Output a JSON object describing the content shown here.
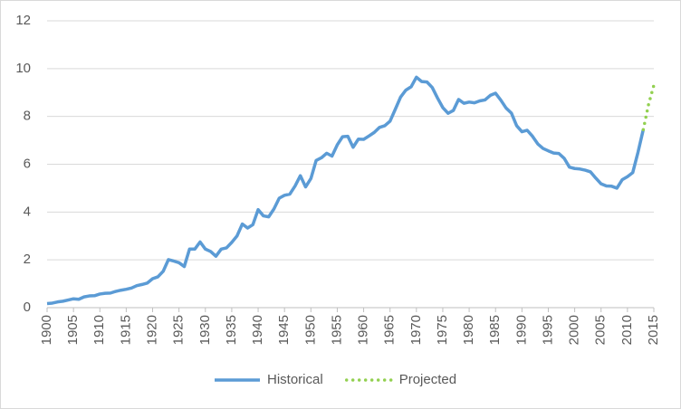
{
  "chart_data": {
    "type": "line",
    "xlim": [
      1900,
      2015
    ],
    "xticks": [
      1900,
      1905,
      1910,
      1915,
      1920,
      1925,
      1930,
      1935,
      1940,
      1945,
      1950,
      1955,
      1960,
      1965,
      1970,
      1975,
      1980,
      1985,
      1990,
      1995,
      2000,
      2005,
      2010,
      2015
    ],
    "ylim": [
      0,
      12
    ],
    "yticks": [
      0,
      2,
      4,
      6,
      8,
      10,
      12
    ],
    "grid": true,
    "legend": "bottom",
    "series": [
      {
        "name": "Historical",
        "color": "#5b9bd5",
        "style": "solid",
        "x": [
          1900,
          1901,
          1902,
          1903,
          1904,
          1905,
          1906,
          1907,
          1908,
          1909,
          1910,
          1911,
          1912,
          1913,
          1914,
          1915,
          1916,
          1917,
          1918,
          1919,
          1920,
          1921,
          1922,
          1923,
          1924,
          1925,
          1926,
          1927,
          1928,
          1929,
          1930,
          1931,
          1932,
          1933,
          1934,
          1935,
          1936,
          1937,
          1938,
          1939,
          1940,
          1941,
          1942,
          1943,
          1944,
          1945,
          1946,
          1947,
          1948,
          1949,
          1950,
          1951,
          1952,
          1953,
          1954,
          1955,
          1956,
          1957,
          1958,
          1959,
          1960,
          1961,
          1962,
          1963,
          1964,
          1965,
          1966,
          1967,
          1968,
          1969,
          1970,
          1971,
          1972,
          1973,
          1974,
          1975,
          1976,
          1977,
          1978,
          1979,
          1980,
          1981,
          1982,
          1983,
          1984,
          1985,
          1986,
          1987,
          1988,
          1989,
          1990,
          1991,
          1992,
          1993,
          1994,
          1995,
          1996,
          1997,
          1998,
          1999,
          2000,
          2001,
          2002,
          2003,
          2004,
          2005,
          2006,
          2007,
          2008,
          2009,
          2010,
          2011,
          2012,
          2013
        ],
        "values": [
          0.17,
          0.19,
          0.24,
          0.27,
          0.32,
          0.37,
          0.35,
          0.45,
          0.49,
          0.5,
          0.57,
          0.6,
          0.61,
          0.68,
          0.73,
          0.77,
          0.82,
          0.92,
          0.97,
          1.03,
          1.21,
          1.29,
          1.52,
          2.01,
          1.95,
          1.88,
          1.72,
          2.45,
          2.45,
          2.75,
          2.45,
          2.35,
          2.15,
          2.45,
          2.5,
          2.73,
          3.0,
          3.5,
          3.33,
          3.47,
          4.1,
          3.84,
          3.8,
          4.13,
          4.58,
          4.7,
          4.75,
          5.09,
          5.52,
          5.05,
          5.4,
          6.16,
          6.27,
          6.46,
          6.34,
          6.81,
          7.15,
          7.17,
          6.71,
          7.05,
          7.04,
          7.18,
          7.33,
          7.54,
          7.61,
          7.8,
          8.3,
          8.81,
          9.1,
          9.24,
          9.64,
          9.46,
          9.44,
          9.21,
          8.77,
          8.37,
          8.13,
          8.25,
          8.71,
          8.55,
          8.6,
          8.57,
          8.65,
          8.69,
          8.88,
          8.97,
          8.68,
          8.35,
          8.14,
          7.61,
          7.36,
          7.42,
          7.17,
          6.85,
          6.66,
          6.56,
          6.47,
          6.45,
          6.25,
          5.88,
          5.82,
          5.8,
          5.75,
          5.68,
          5.42,
          5.18,
          5.09,
          5.08,
          5.0,
          5.35,
          5.48,
          5.65,
          6.5,
          7.45
        ]
      },
      {
        "name": "Projected",
        "color": "#92d050",
        "style": "dotted",
        "x": [
          2013,
          2014,
          2015
        ],
        "values": [
          7.45,
          8.5,
          9.3
        ]
      }
    ]
  }
}
